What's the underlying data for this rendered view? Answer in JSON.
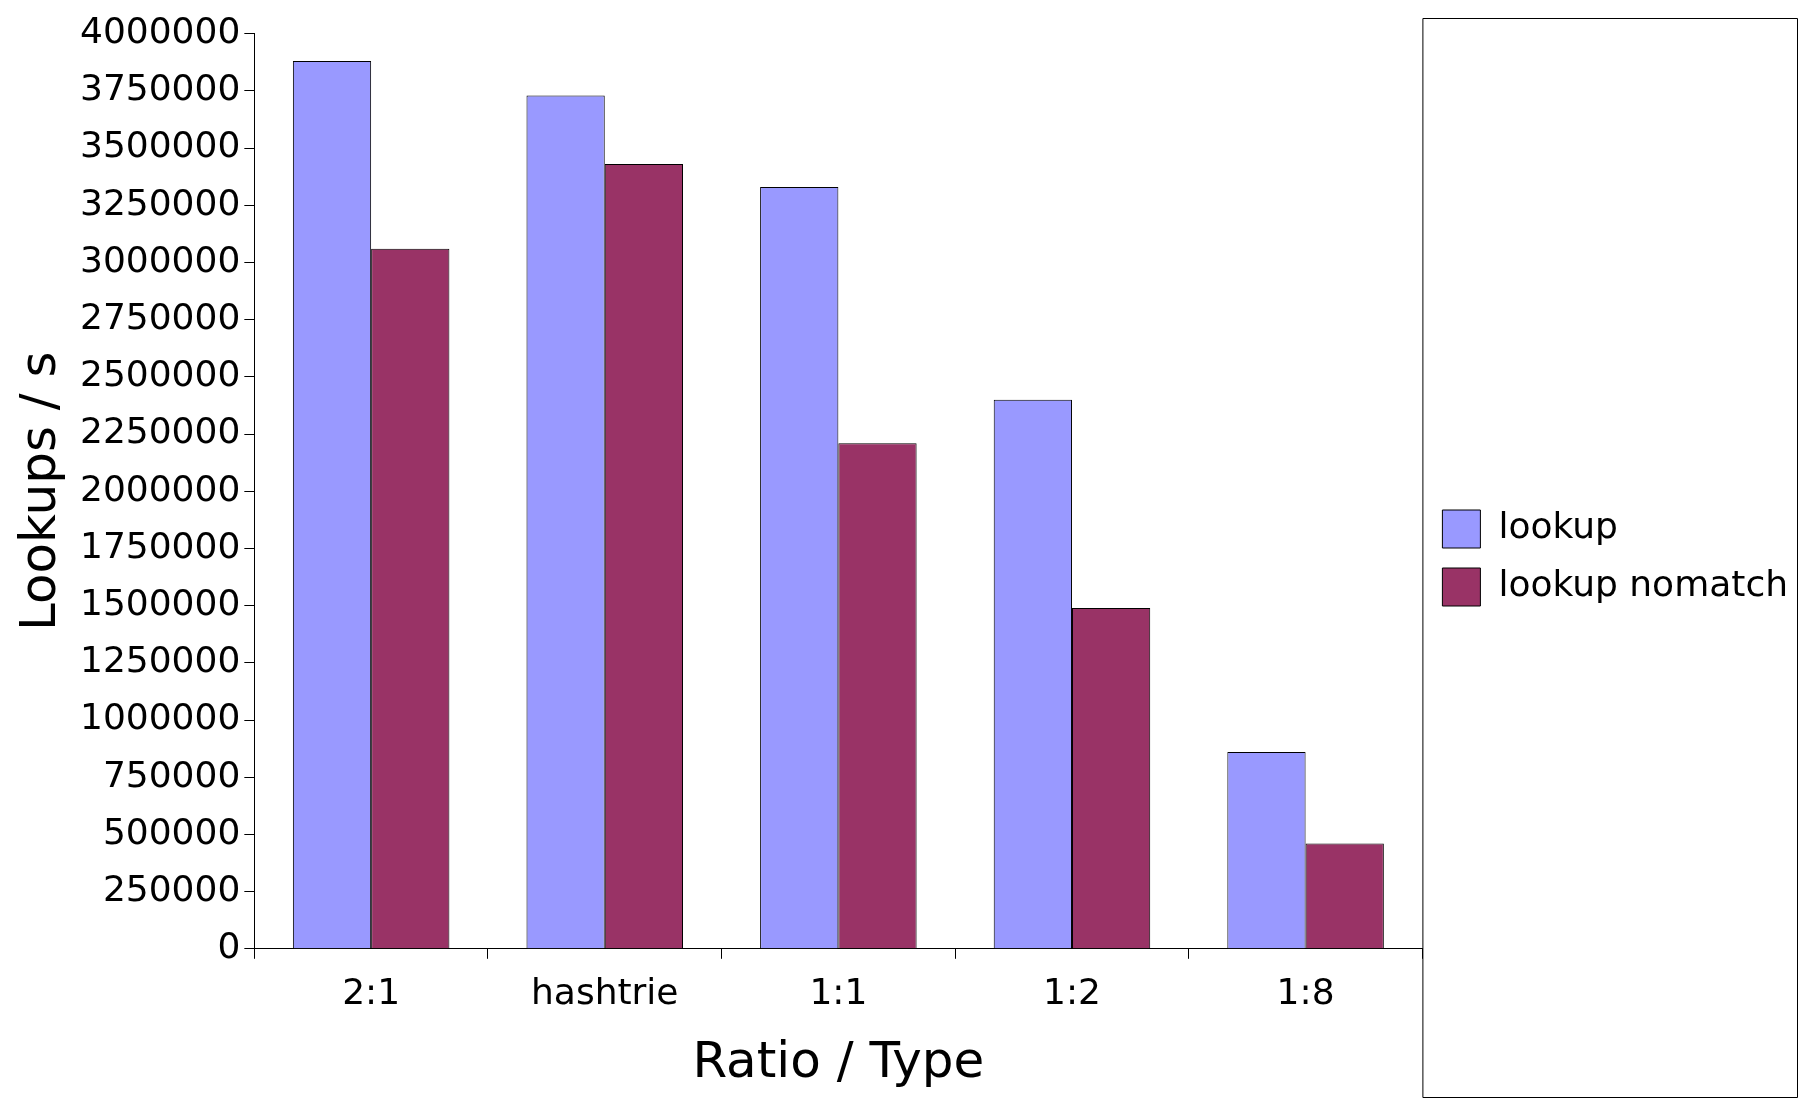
{
  "chart_data": {
    "type": "bar",
    "xlabel": "Ratio / Type",
    "ylabel": "Lookups / s",
    "categories": [
      "2:1",
      "hashtrie",
      "1:1",
      "1:2",
      "1:8"
    ],
    "series": [
      {
        "name": "lookup",
        "color": "#9999ff",
        "values": [
          3880000,
          3730000,
          3330000,
          2400000,
          860000
        ]
      },
      {
        "name": "lookup nomatch",
        "color": "#993366",
        "values": [
          3060000,
          3430000,
          2210000,
          1490000,
          460000
        ]
      }
    ],
    "ylim": [
      0,
      4000000
    ],
    "yticks": [
      0,
      250000,
      500000,
      750000,
      1000000,
      1250000,
      1500000,
      1750000,
      2000000,
      2250000,
      2500000,
      2750000,
      3000000,
      3250000,
      3500000,
      3750000,
      4000000
    ],
    "grid": false,
    "legend": "right"
  }
}
